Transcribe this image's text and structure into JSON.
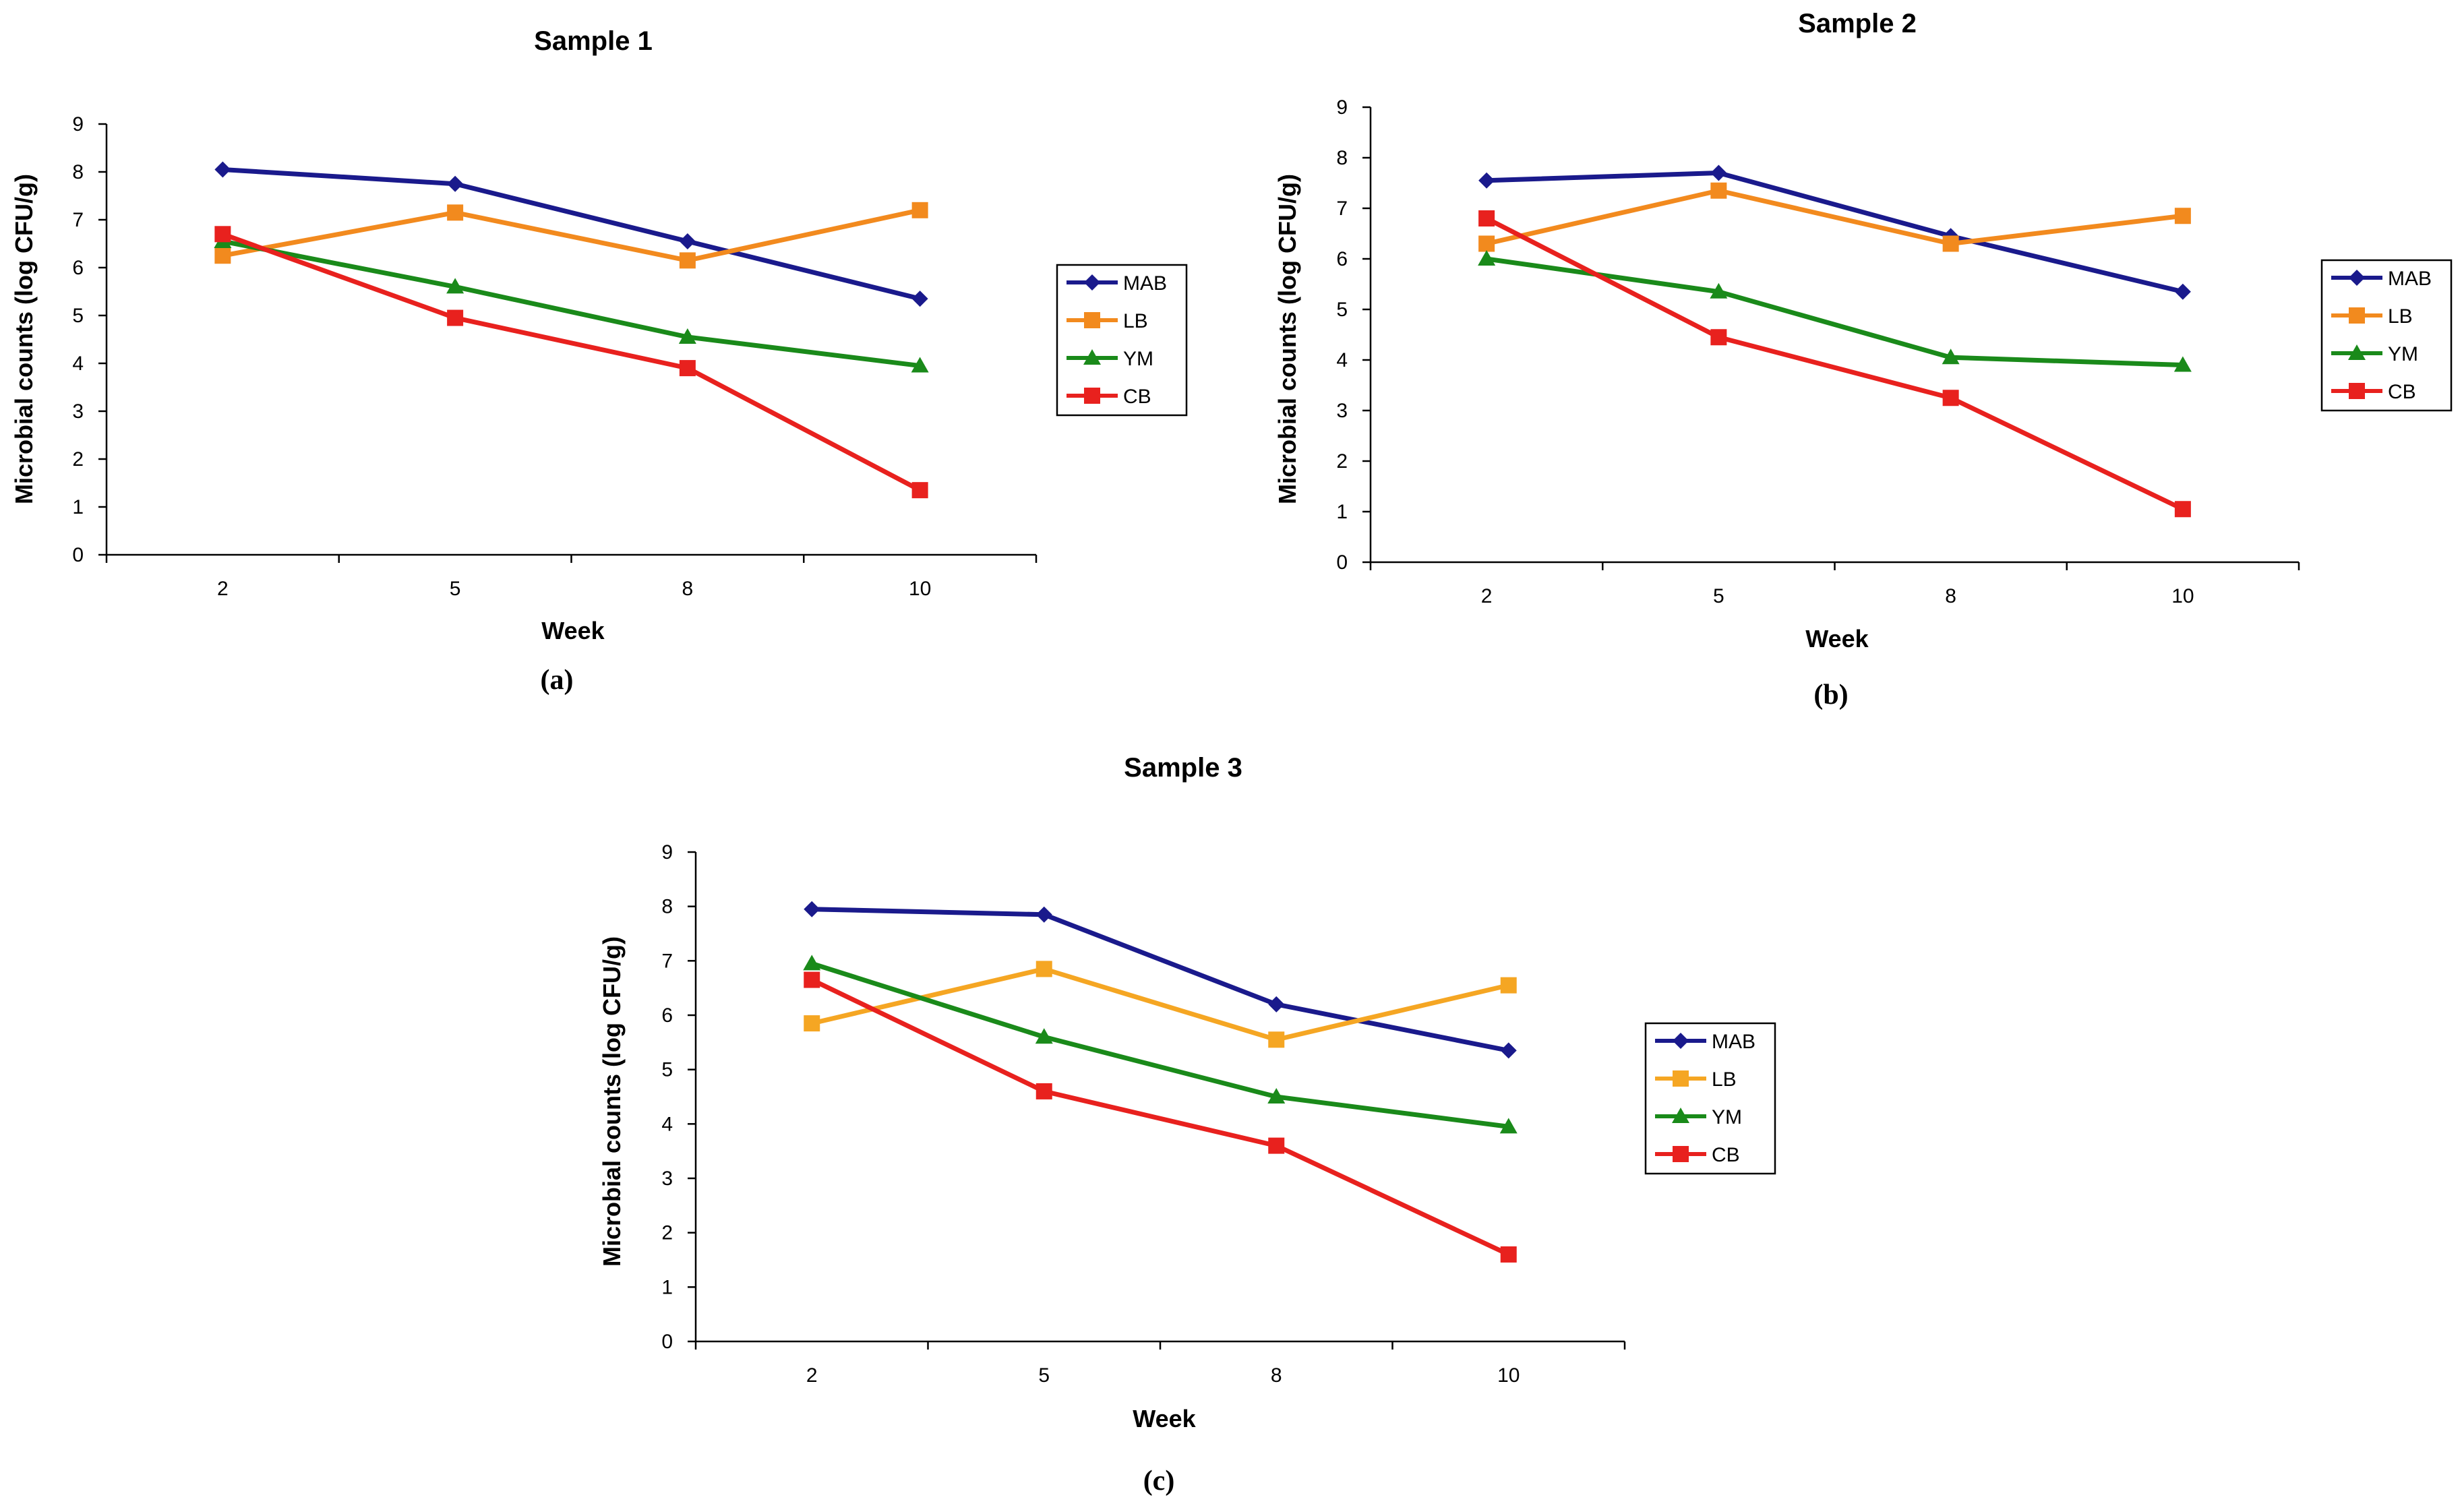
{
  "figure": {
    "colors": {
      "MAB": "#1a1a8c",
      "LB": "#f28a1e",
      "LB_sample3": "#f5a623",
      "YM": "#1a8a1a",
      "CB": "#e8211e"
    }
  },
  "chart_data": [
    {
      "type": "line",
      "title": "Sample 1",
      "panel_label": "(a)",
      "xlabel": "Week",
      "ylabel": "Microbial counts (log CFU/g)",
      "categories": [
        "2",
        "5",
        "8",
        "10"
      ],
      "ylim": [
        0,
        9
      ],
      "yticks": [
        "0",
        "1",
        "2",
        "3",
        "4",
        "5",
        "6",
        "7",
        "8",
        "9"
      ],
      "legend_position": "right",
      "series": [
        {
          "name": "MAB",
          "marker": "diamond",
          "values": [
            8.05,
            7.75,
            6.55,
            5.35
          ]
        },
        {
          "name": "LB",
          "marker": "square",
          "values": [
            6.25,
            7.15,
            6.15,
            7.2
          ]
        },
        {
          "name": "YM",
          "marker": "triangle",
          "values": [
            6.55,
            5.6,
            4.55,
            3.95
          ]
        },
        {
          "name": "CB",
          "marker": "square",
          "values": [
            6.7,
            4.95,
            3.9,
            1.35
          ]
        }
      ]
    },
    {
      "type": "line",
      "title": "Sample 2",
      "panel_label": "(b)",
      "xlabel": "Week",
      "ylabel": "Microbial counts (log CFU/g)",
      "categories": [
        "2",
        "5",
        "8",
        "10"
      ],
      "ylim": [
        0,
        9
      ],
      "yticks": [
        "0",
        "1",
        "2",
        "3",
        "4",
        "5",
        "6",
        "7",
        "8",
        "9"
      ],
      "legend_position": "right",
      "series": [
        {
          "name": "MAB",
          "marker": "diamond",
          "values": [
            7.55,
            7.7,
            6.45,
            5.35
          ]
        },
        {
          "name": "LB",
          "marker": "square",
          "values": [
            6.3,
            7.35,
            6.3,
            6.85
          ]
        },
        {
          "name": "YM",
          "marker": "triangle",
          "values": [
            6.0,
            5.35,
            4.05,
            3.9
          ]
        },
        {
          "name": "CB",
          "marker": "square",
          "values": [
            6.8,
            4.45,
            3.25,
            1.05
          ]
        }
      ]
    },
    {
      "type": "line",
      "title": "Sample 3",
      "panel_label": "(c)",
      "xlabel": "Week",
      "ylabel": "Microbial counts (log CFU/g)",
      "categories": [
        "2",
        "5",
        "8",
        "10"
      ],
      "ylim": [
        0,
        9
      ],
      "yticks": [
        "0",
        "1",
        "2",
        "3",
        "4",
        "5",
        "6",
        "7",
        "8",
        "9"
      ],
      "legend_position": "right",
      "series": [
        {
          "name": "MAB",
          "marker": "diamond",
          "values": [
            7.95,
            7.85,
            6.2,
            5.35
          ]
        },
        {
          "name": "LB",
          "marker": "square",
          "values": [
            5.85,
            6.85,
            5.55,
            6.55
          ]
        },
        {
          "name": "YM",
          "marker": "triangle",
          "values": [
            6.95,
            5.6,
            4.5,
            3.95
          ]
        },
        {
          "name": "CB",
          "marker": "square",
          "values": [
            6.65,
            4.6,
            3.6,
            1.6
          ]
        }
      ]
    }
  ]
}
